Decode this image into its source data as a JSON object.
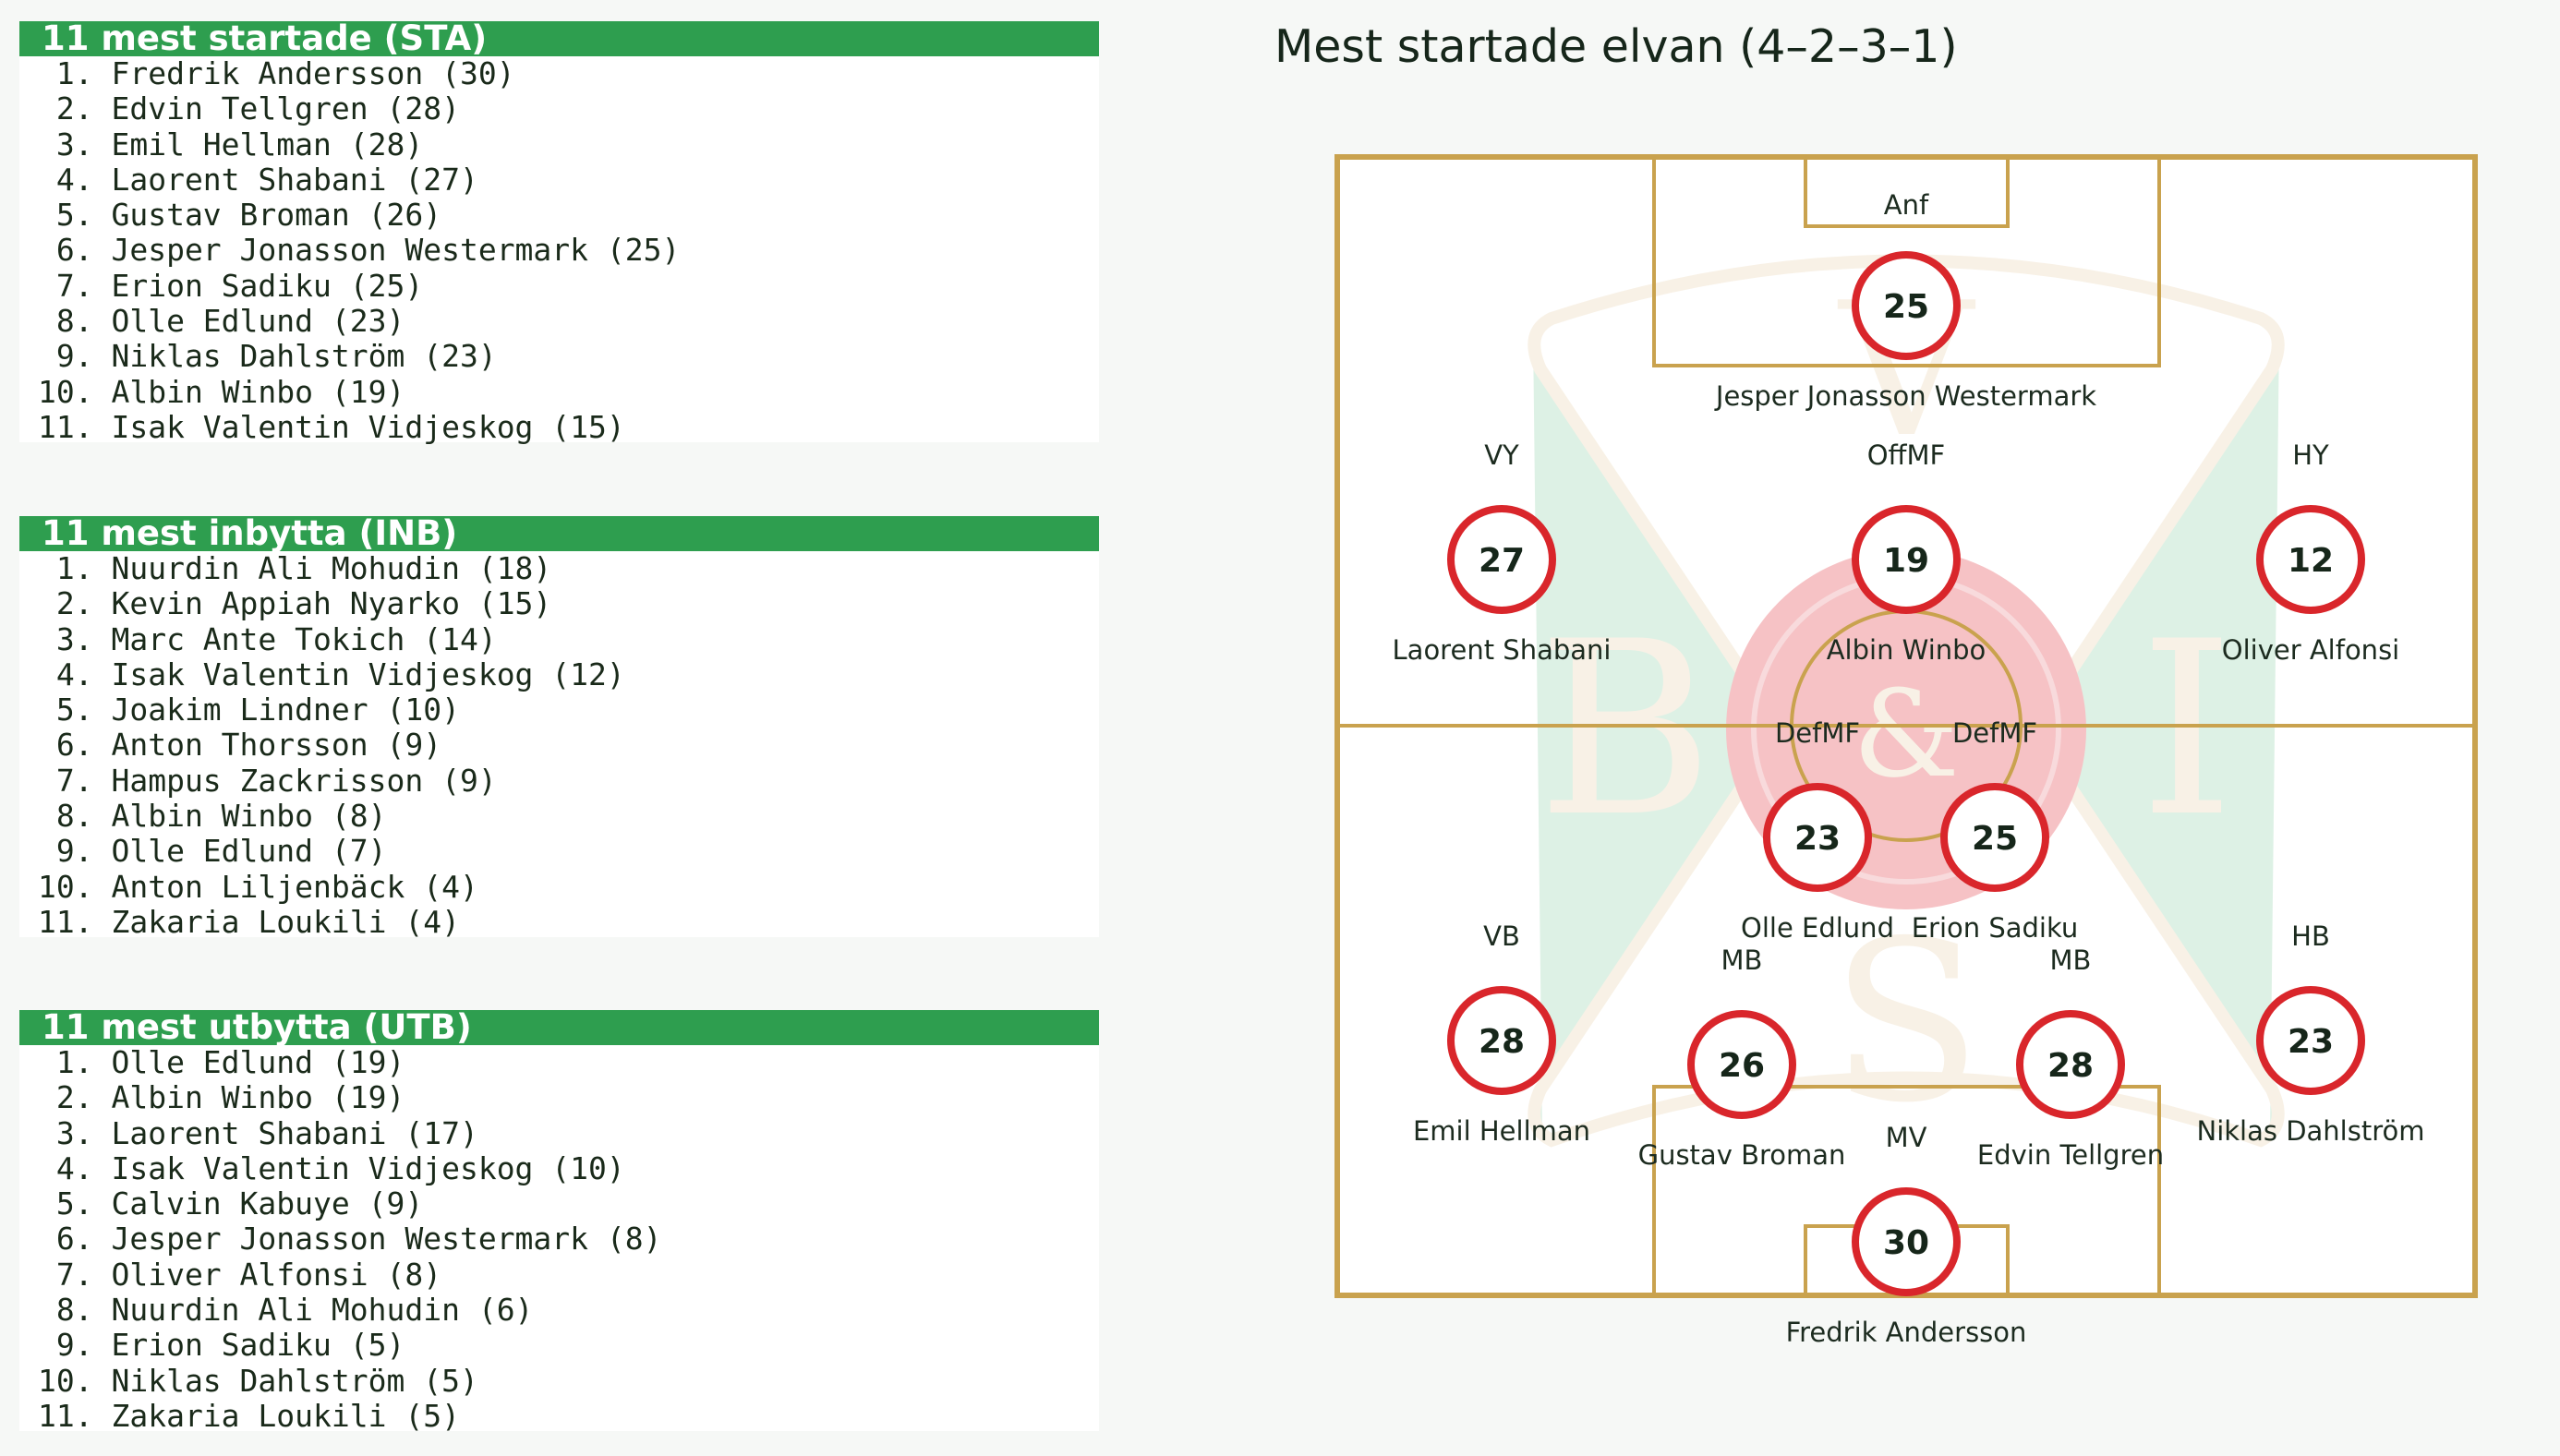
{
  "colors": {
    "header_green": "#2e9e4f",
    "pitch_line": "#c9a24e",
    "player_ring": "#d9262b",
    "crest_green": "#d8efe1",
    "crest_red": "#f5b8bb",
    "crest_cream": "#f7efe2"
  },
  "panels": {
    "starts": {
      "title": "11 mest startade (STA)",
      "items": [
        " 1. Fredrik Andersson (30)",
        " 2. Edvin Tellgren (28)",
        " 3. Emil Hellman (28)",
        " 4. Laorent Shabani (27)",
        " 5. Gustav Broman (26)",
        " 6. Jesper Jonasson Westermark (25)",
        " 7. Erion Sadiku (25)",
        " 8. Olle Edlund (23)",
        " 9. Niklas Dahlström (23)",
        "10. Albin Winbo (19)",
        "11. Isak Valentin Vidjeskog (15)"
      ]
    },
    "subs_in": {
      "title": "11 mest inbytta (INB)",
      "items": [
        " 1. Nuurdin Ali Mohudin (18)",
        " 2. Kevin Appiah Nyarko (15)",
        " 3. Marc Ante Tokich (14)",
        " 4. Isak Valentin Vidjeskog (12)",
        " 5. Joakim Lindner (10)",
        " 6. Anton Thorsson (9)",
        " 7. Hampus Zackrisson (9)",
        " 8. Albin Winbo (8)",
        " 9. Olle Edlund (7)",
        "10. Anton Liljenbäck (4)",
        "11. Zakaria Loukili (4)"
      ]
    },
    "subs_out": {
      "title": "11 mest utbytta (UTB)",
      "items": [
        " 1. Olle Edlund (19)",
        " 2. Albin Winbo (19)",
        " 3. Laorent Shabani (17)",
        " 4. Isak Valentin Vidjeskog (10)",
        " 5. Calvin Kabuye (9)",
        " 6. Jesper Jonasson Westermark (8)",
        " 7. Oliver Alfonsi (8)",
        " 8. Nuurdin Ali Mohudin (6)",
        " 9. Erion Sadiku (5)",
        "10. Niklas Dahlström (5)",
        "11. Zakaria Loukili (5)"
      ]
    }
  },
  "formation": {
    "title": "Mest startade elvan (4–2–3–1)",
    "crest_letters": [
      "V",
      "B",
      "&",
      "I",
      "S"
    ],
    "players": [
      {
        "pos": "Anf",
        "count": "25",
        "name": "Jesper Jonasson Westermark"
      },
      {
        "pos": "VY",
        "count": "27",
        "name": "Laorent Shabani"
      },
      {
        "pos": "OffMF",
        "count": "19",
        "name": "Albin Winbo"
      },
      {
        "pos": "HY",
        "count": "12",
        "name": "Oliver Alfonsi"
      },
      {
        "pos": "DefMF",
        "count": "23",
        "name": "Olle Edlund"
      },
      {
        "pos": "DefMF",
        "count": "25",
        "name": "Erion Sadiku"
      },
      {
        "pos": "VB",
        "count": "28",
        "name": "Emil Hellman"
      },
      {
        "pos": "MB",
        "count": "26",
        "name": "Gustav Broman"
      },
      {
        "pos": "MB",
        "count": "28",
        "name": "Edvin Tellgren"
      },
      {
        "pos": "HB",
        "count": "23",
        "name": "Niklas Dahlström"
      },
      {
        "pos": "MV",
        "count": "30",
        "name": "Fredrik Andersson"
      }
    ]
  }
}
